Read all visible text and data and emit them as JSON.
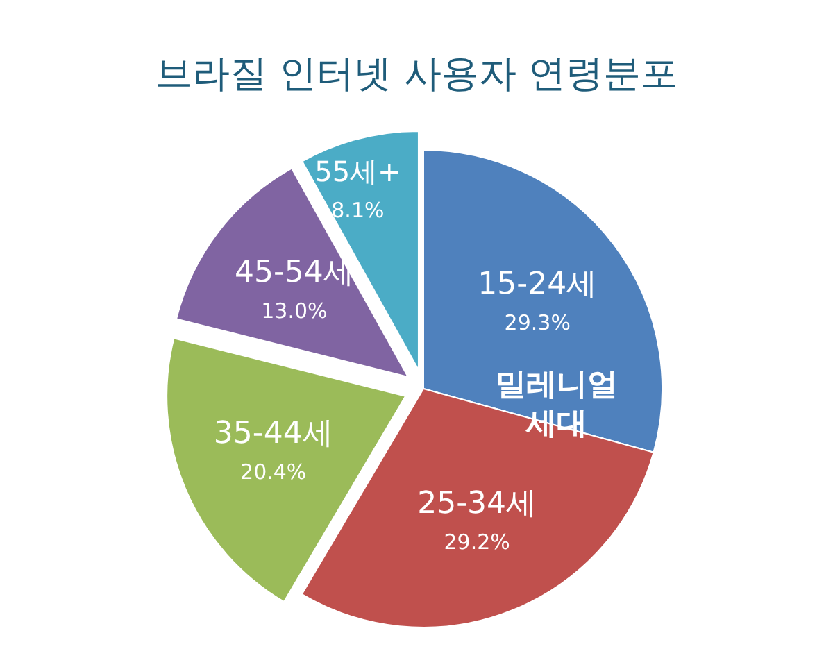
{
  "chart_data": {
    "type": "pie",
    "title": "브라질 인터넷 사용자 연령분포",
    "categories": [
      "15-24세",
      "25-34세",
      "35-44세",
      "45-54세",
      "55세+"
    ],
    "values": [
      29.3,
      29.2,
      20.4,
      13.0,
      8.1
    ],
    "value_labels": [
      "29.3%",
      "29.2%",
      "20.4%",
      "13.0%",
      "8.1%"
    ],
    "colors": [
      "#4f81bd",
      "#c0504d",
      "#9bbb59",
      "#8064a2",
      "#4bacc6"
    ],
    "annotations": [
      "밀레니얼\n세대"
    ]
  }
}
